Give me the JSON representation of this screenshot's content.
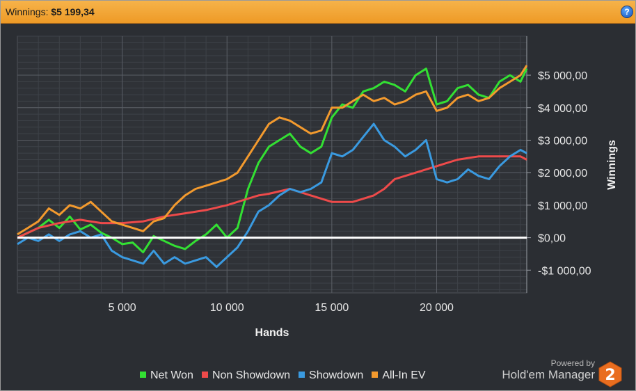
{
  "header": {
    "label": "Winnings:",
    "value": "$5 199,34",
    "help_icon": "help-icon",
    "help_glyph": "?"
  },
  "chart_data": {
    "type": "line",
    "xlabel": "Hands",
    "ylabel": "Winnings",
    "xlim": [
      0,
      24300
    ],
    "ylim": [
      -1700,
      6200
    ],
    "x_ticks": [
      5000,
      10000,
      15000,
      20000
    ],
    "x_tick_labels": [
      "5 000",
      "10 000",
      "15 000",
      "20 000"
    ],
    "y_ticks": [
      5000,
      4000,
      3000,
      2000,
      1000,
      0,
      -1000
    ],
    "y_tick_labels": [
      "$5 000,00",
      "$4 000,00",
      "$3 000,00",
      "$2 000,00",
      "$1 000,00",
      "$0,00",
      "-$1 000,00"
    ],
    "grid": true,
    "zero_line": true,
    "legend_position": "bottom",
    "series": [
      {
        "name": "Net Won",
        "color": "#33e033",
        "x": [
          0,
          500,
          1000,
          1500,
          2000,
          2500,
          3000,
          3500,
          4000,
          4500,
          5000,
          5500,
          6000,
          6500,
          7000,
          7500,
          8000,
          8500,
          9000,
          9500,
          10000,
          10500,
          11000,
          11500,
          12000,
          12500,
          13000,
          13500,
          14000,
          14500,
          15000,
          15500,
          16000,
          16500,
          17000,
          17500,
          18000,
          18500,
          19000,
          19500,
          20000,
          20500,
          21000,
          21500,
          22000,
          22500,
          23000,
          23500,
          24000,
          24300
        ],
        "values": [
          0,
          150,
          300,
          550,
          300,
          650,
          250,
          400,
          150,
          0,
          -200,
          -150,
          -450,
          50,
          -100,
          -250,
          -350,
          -100,
          100,
          400,
          0,
          300,
          1500,
          2300,
          2800,
          3000,
          3200,
          2800,
          2600,
          2800,
          3700,
          4100,
          4000,
          4500,
          4600,
          4800,
          4700,
          4500,
          5000,
          5200,
          4100,
          4200,
          4600,
          4700,
          4400,
          4300,
          4800,
          5000,
          4800,
          5200
        ]
      },
      {
        "name": "Non Showdown",
        "color": "#ee4a4a",
        "x": [
          0,
          1000,
          2000,
          3000,
          4000,
          5000,
          6000,
          7000,
          8000,
          9000,
          10000,
          11000,
          11500,
          12000,
          13000,
          14000,
          15000,
          16000,
          17000,
          17500,
          18000,
          19000,
          20000,
          21000,
          22000,
          23000,
          24000,
          24300
        ],
        "values": [
          0,
          300,
          450,
          550,
          450,
          450,
          500,
          650,
          750,
          850,
          1000,
          1200,
          1300,
          1350,
          1500,
          1300,
          1100,
          1100,
          1300,
          1500,
          1800,
          2000,
          2200,
          2400,
          2500,
          2500,
          2500,
          2400
        ]
      },
      {
        "name": "Showdown",
        "color": "#3a9ae0",
        "x": [
          0,
          500,
          1000,
          1500,
          2000,
          2500,
          3000,
          3500,
          4000,
          4500,
          5000,
          5500,
          6000,
          6500,
          7000,
          7500,
          8000,
          8500,
          9000,
          9500,
          10000,
          10500,
          11000,
          11500,
          12000,
          12500,
          13000,
          13500,
          14000,
          14500,
          15000,
          15500,
          16000,
          16500,
          17000,
          17500,
          18000,
          18500,
          19000,
          19500,
          20000,
          20500,
          21000,
          21500,
          22000,
          22500,
          23000,
          23500,
          24000,
          24300
        ],
        "values": [
          -200,
          0,
          -100,
          100,
          -100,
          100,
          200,
          0,
          100,
          -400,
          -600,
          -700,
          -800,
          -400,
          -800,
          -600,
          -800,
          -700,
          -600,
          -900,
          -600,
          -300,
          200,
          800,
          1000,
          1300,
          1500,
          1400,
          1500,
          1700,
          2600,
          2500,
          2700,
          3100,
          3500,
          3000,
          2800,
          2500,
          2700,
          3000,
          1800,
          1700,
          1800,
          2100,
          1900,
          1800,
          2200,
          2500,
          2700,
          2600
        ]
      },
      {
        "name": "All-In EV",
        "color": "#f39a2e",
        "x": [
          0,
          500,
          1000,
          1500,
          2000,
          2500,
          3000,
          3500,
          4000,
          4500,
          5000,
          5500,
          6000,
          6500,
          7000,
          7500,
          8000,
          8500,
          9000,
          9500,
          10000,
          10500,
          11000,
          11500,
          12000,
          12500,
          13000,
          13500,
          14000,
          14500,
          15000,
          15500,
          16000,
          16500,
          17000,
          17500,
          18000,
          18500,
          19000,
          19500,
          20000,
          20500,
          21000,
          21500,
          22000,
          22500,
          23000,
          23500,
          24000,
          24300
        ],
        "values": [
          100,
          300,
          500,
          900,
          700,
          1000,
          900,
          1100,
          800,
          500,
          400,
          300,
          200,
          500,
          600,
          1000,
          1300,
          1500,
          1600,
          1700,
          1800,
          2000,
          2500,
          3000,
          3500,
          3700,
          3600,
          3400,
          3200,
          3300,
          4000,
          4000,
          4200,
          4400,
          4200,
          4300,
          4100,
          4200,
          4400,
          4500,
          3900,
          4000,
          4300,
          4400,
          4200,
          4300,
          4600,
          4800,
          5000,
          5300
        ]
      }
    ]
  },
  "footer": {
    "powered_by": "Powered by",
    "brand": "Hold'em Manager",
    "badge_number": "2"
  }
}
